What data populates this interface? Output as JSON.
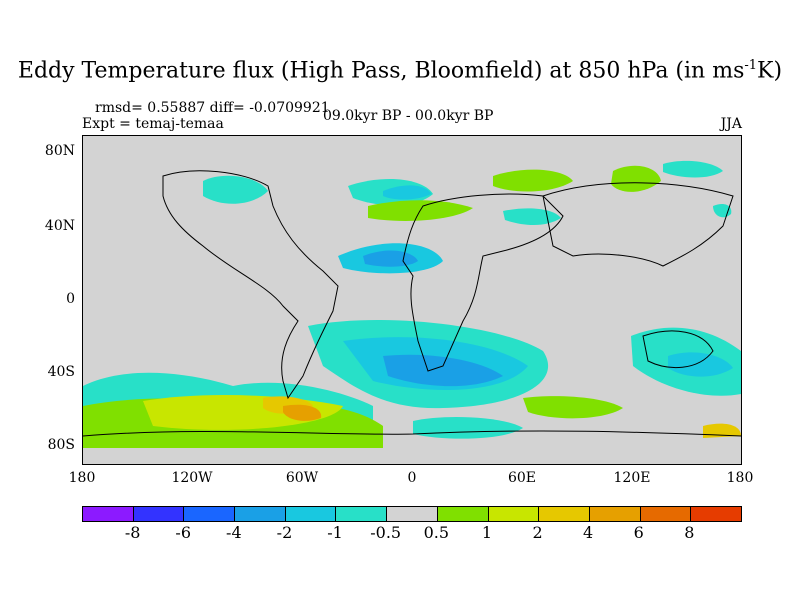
{
  "title": {
    "main": "Eddy Temperature flux (High Pass, Bloomfield) at 850 hPa (in ms",
    "sup": "-1",
    "end": "K)"
  },
  "stats": "rmsd= 0.55887  diff= -0.0709921",
  "expt": "Expt = temaj-temaa",
  "period": "09.0kyr BP - 00.0kyr BP",
  "season": "JJA",
  "lat_labels": [
    "80N",
    "40N",
    "0",
    "40S",
    "80S"
  ],
  "lon_labels": [
    "180",
    "120W",
    "60W",
    "0",
    "60E",
    "120E",
    "180"
  ],
  "colorbar": {
    "colors": [
      "#8c1aff",
      "#3333ff",
      "#1a66ff",
      "#1aa0e6",
      "#19c8e0",
      "#28e0c8",
      "#d3d3d3",
      "#80e000",
      "#c8e600",
      "#e6c800",
      "#e6a000",
      "#e66a00",
      "#e63c00"
    ],
    "labels": [
      "-8",
      "-6",
      "-4",
      "-2",
      "-1",
      "-0.5",
      "0.5",
      "1",
      "2",
      "4",
      "6",
      "8"
    ]
  }
}
